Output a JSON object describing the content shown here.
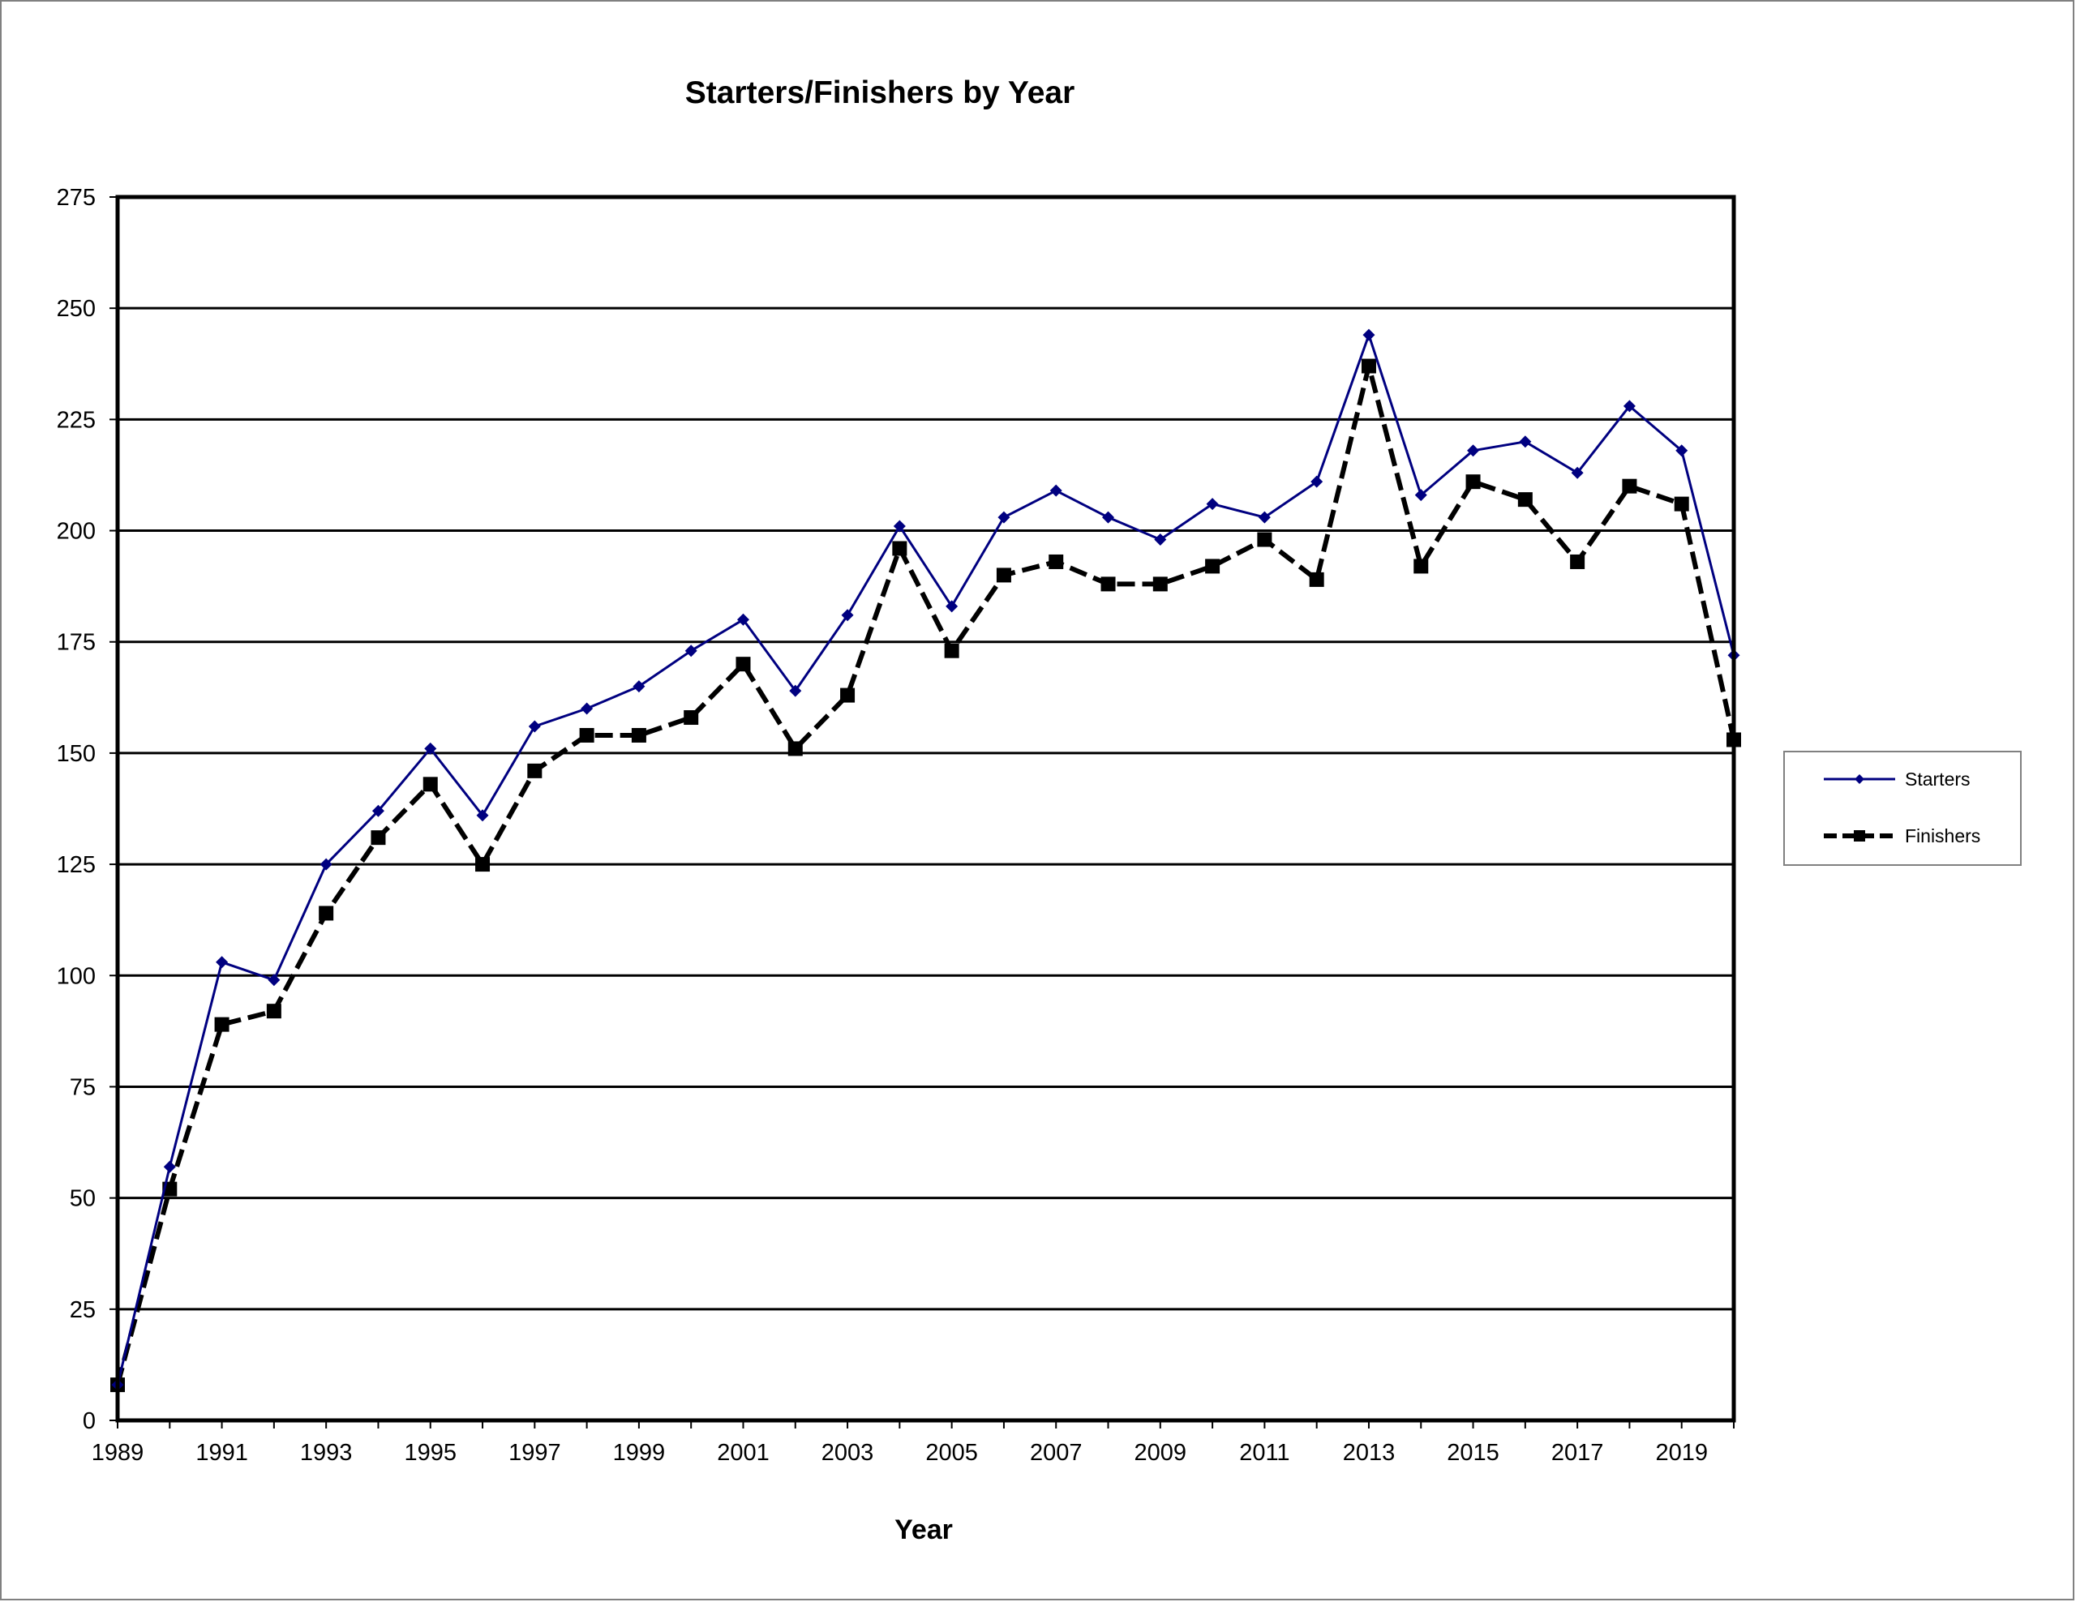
{
  "chart_data": {
    "type": "line",
    "title": "Starters/Finishers by Year",
    "xlabel": "Year",
    "ylabel": "",
    "ylim": [
      0,
      275
    ],
    "yticks": [
      0,
      25,
      50,
      75,
      100,
      125,
      150,
      175,
      200,
      225,
      250,
      275
    ],
    "xlim": [
      1989,
      2020
    ],
    "xtick_labels": [
      "1989",
      "1991",
      "1993",
      "1995",
      "1997",
      "1999",
      "2001",
      "2003",
      "2005",
      "2007",
      "2009",
      "2011",
      "2013",
      "2015",
      "2017",
      "2019"
    ],
    "grid": true,
    "legend_position": "right",
    "x": [
      1989,
      1990,
      1991,
      1992,
      1993,
      1994,
      1995,
      1996,
      1997,
      1998,
      1999,
      2000,
      2001,
      2002,
      2003,
      2004,
      2005,
      2006,
      2007,
      2008,
      2009,
      2010,
      2011,
      2012,
      2013,
      2014,
      2015,
      2016,
      2017,
      2018,
      2019,
      2020
    ],
    "series": [
      {
        "name": "Starters",
        "color": "#000080",
        "marker": "diamond",
        "line_style": "solid",
        "values": [
          8,
          57,
          103,
          99,
          125,
          137,
          151,
          136,
          156,
          160,
          165,
          173,
          180,
          164,
          181,
          201,
          183,
          203,
          209,
          203,
          198,
          206,
          203,
          211,
          244,
          208,
          218,
          220,
          213,
          228,
          218,
          172
        ]
      },
      {
        "name": "Finishers",
        "color": "#000000",
        "marker": "square",
        "line_style": "dashed",
        "values": [
          8,
          52,
          89,
          92,
          114,
          131,
          143,
          125,
          146,
          154,
          154,
          158,
          170,
          151,
          163,
          196,
          173,
          190,
          193,
          188,
          188,
          192,
          198,
          189,
          237,
          192,
          211,
          207,
          193,
          210,
          206,
          153
        ]
      }
    ]
  }
}
